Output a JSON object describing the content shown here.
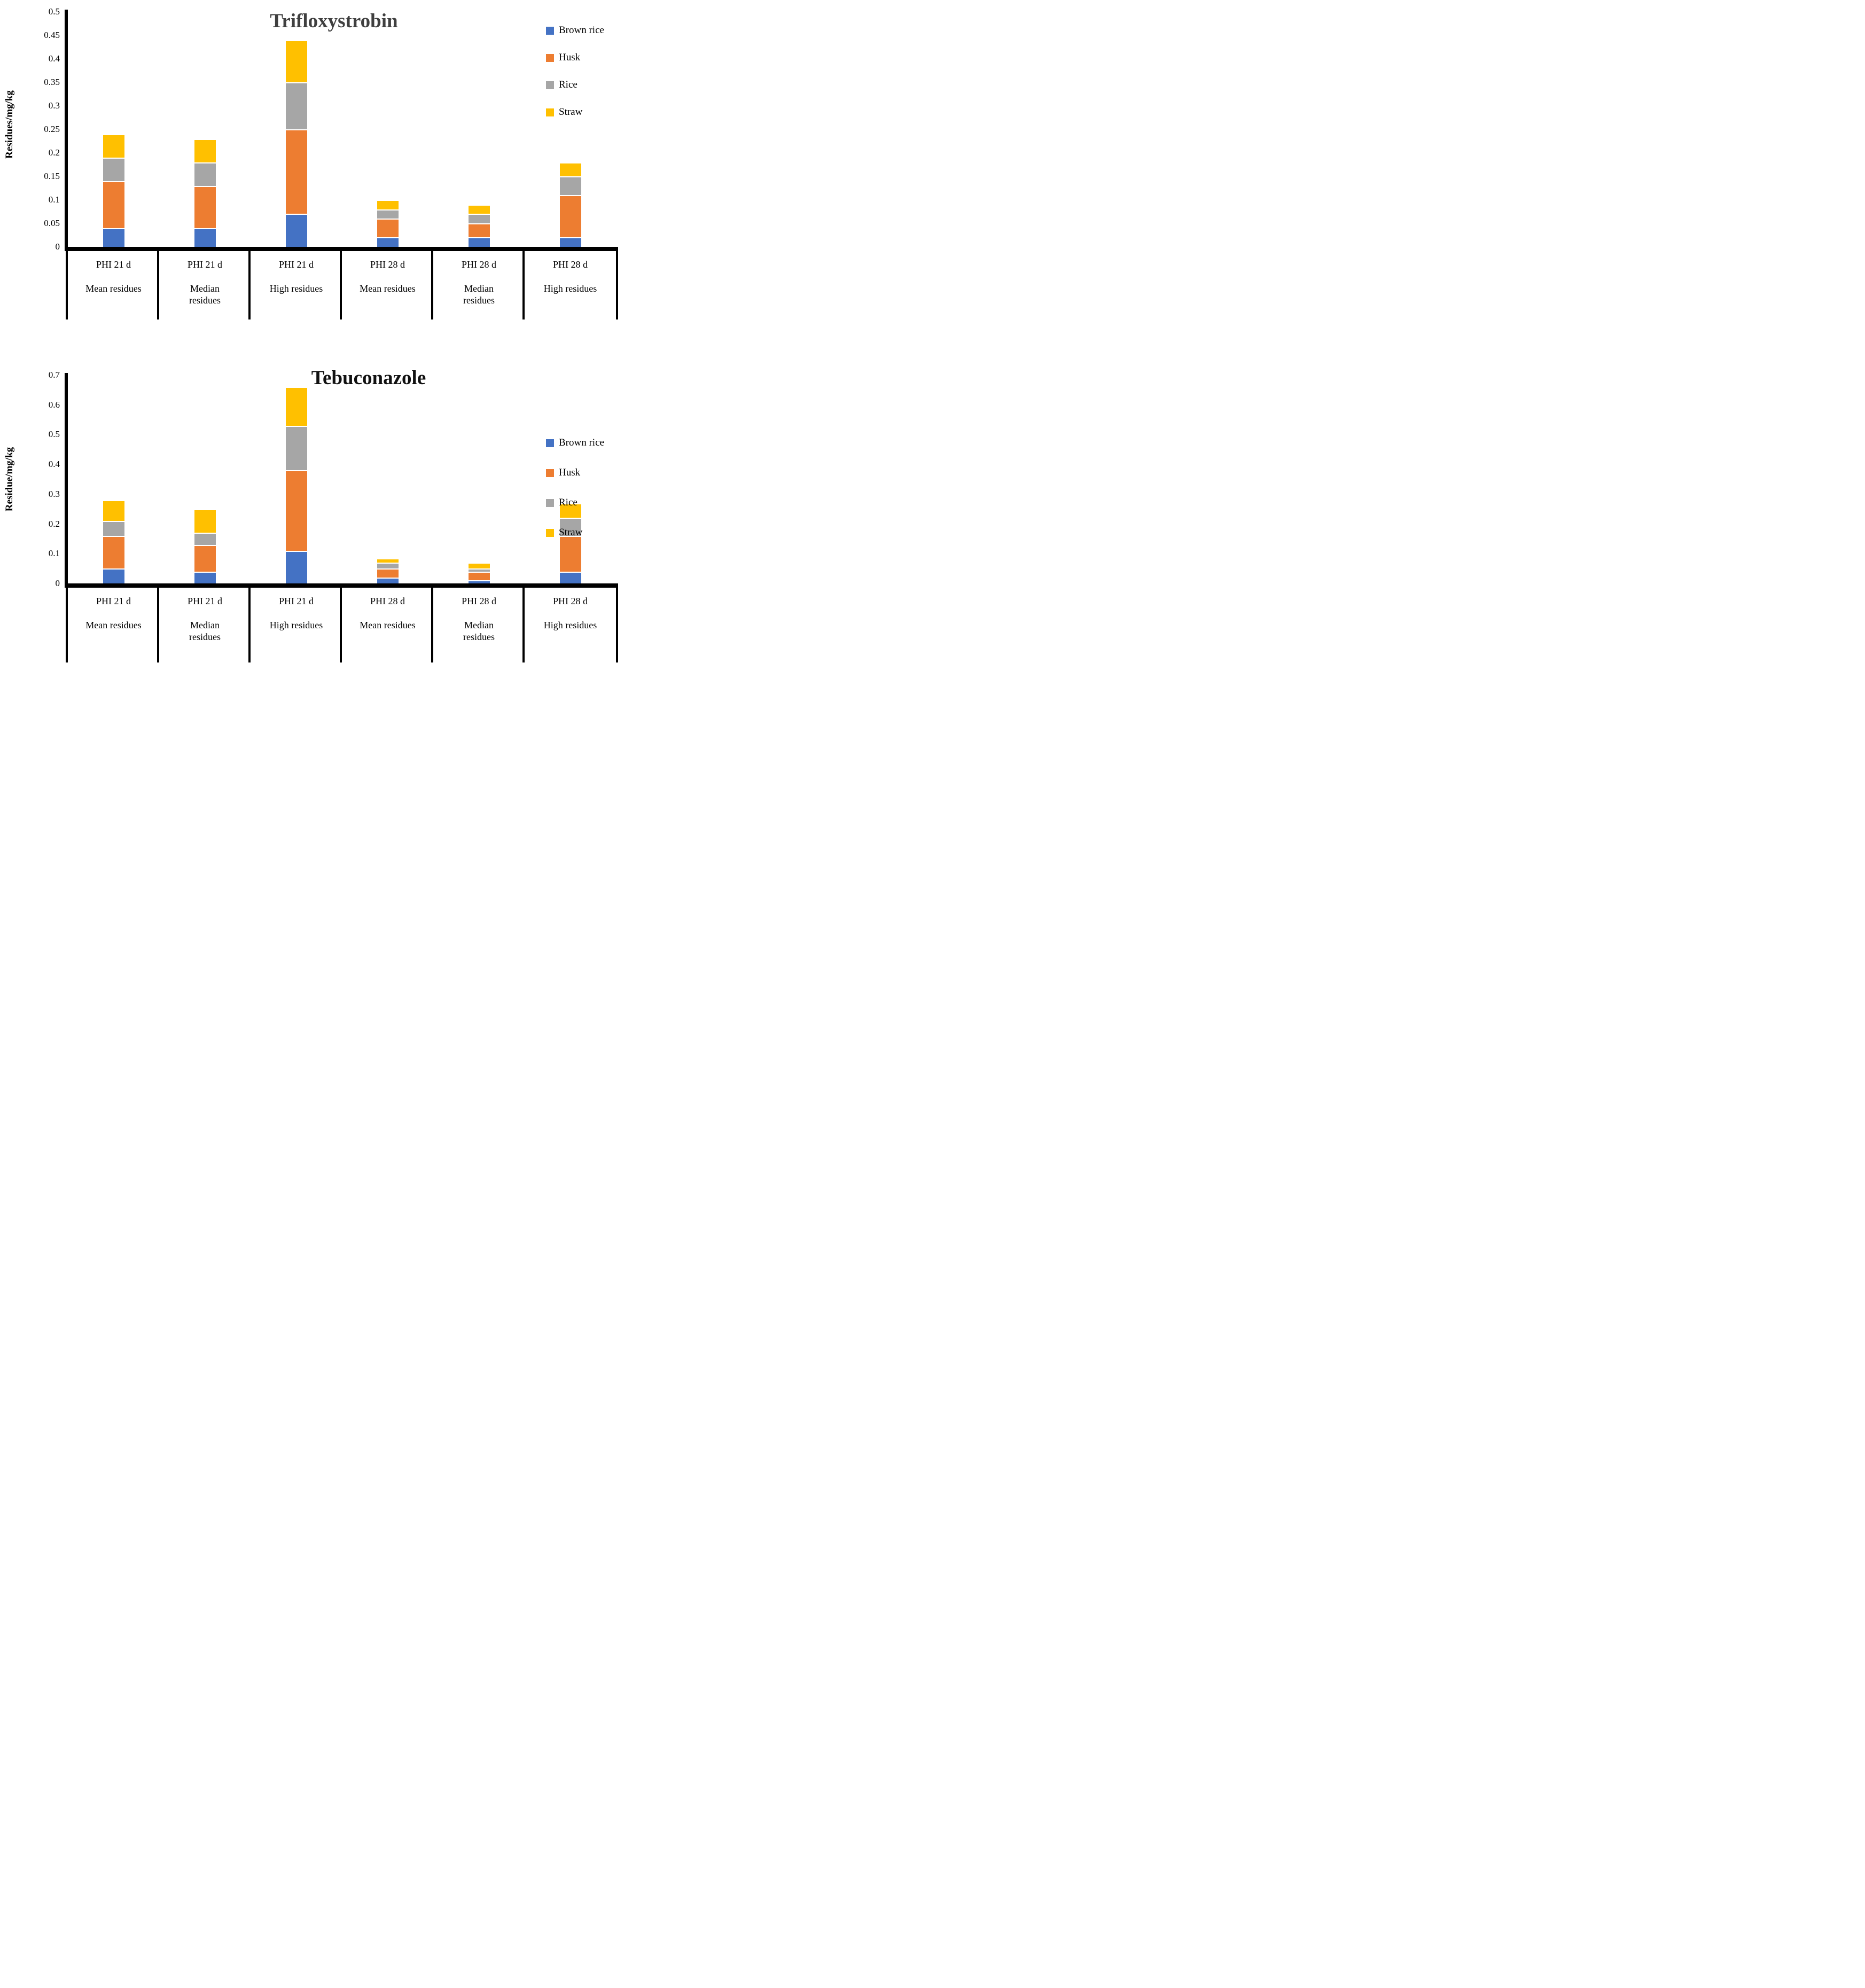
{
  "chart_data": [
    {
      "type": "bar",
      "stacked": true,
      "title": "Trifloxystrobin",
      "ylabel": "Residues/mg/kg",
      "xlabel": "",
      "ylim": [
        0,
        0.5
      ],
      "ytick_step": 0.05,
      "yticks": [
        "0.5",
        "0.45",
        "0.4",
        "0.35",
        "0.3",
        "0.25",
        "0.2",
        "0.15",
        "0.1",
        "0.05",
        "0"
      ],
      "grid": false,
      "legend_position": "upper right",
      "categories": [
        [
          "PHI 21 d",
          "Mean residues"
        ],
        [
          "PHI 21 d",
          "Median",
          "residues"
        ],
        [
          "PHI 21 d",
          "High residues"
        ],
        [
          "PHI 28 d",
          "Mean residues"
        ],
        [
          "PHI 28 d",
          "Median",
          "residues"
        ],
        [
          "PHI 28 d",
          "High residues"
        ]
      ],
      "series": [
        {
          "name": "Brown rice",
          "color": "#4472C4",
          "values": [
            0.04,
            0.04,
            0.07,
            0.02,
            0.02,
            0.02
          ]
        },
        {
          "name": "Husk",
          "color": "#ED7D31",
          "values": [
            0.1,
            0.09,
            0.18,
            0.04,
            0.03,
            0.09
          ]
        },
        {
          "name": "Rice",
          "color": "#A6A6A6",
          "values": [
            0.05,
            0.05,
            0.1,
            0.02,
            0.02,
            0.04
          ]
        },
        {
          "name": "Straw",
          "color": "#FFC000",
          "values": [
            0.05,
            0.05,
            0.09,
            0.02,
            0.02,
            0.03
          ]
        }
      ],
      "stack_totals": [
        0.24,
        0.23,
        0.44,
        0.1,
        0.09,
        0.18
      ]
    },
    {
      "type": "bar",
      "stacked": true,
      "title": "Tebuconazole",
      "ylabel": "Residue/mg/kg",
      "xlabel": "",
      "ylim": [
        0,
        0.7
      ],
      "ytick_step": 0.1,
      "yticks": [
        "0.7",
        "0.6",
        "0.5",
        "0.4",
        "0.3",
        "0.2",
        "0.1",
        "0"
      ],
      "grid": false,
      "legend_position": "upper right",
      "categories": [
        [
          "PHI 21 d",
          "Mean residues"
        ],
        [
          "PHI 21 d",
          "Median",
          "residues"
        ],
        [
          "PHI 21 d",
          "High residues"
        ],
        [
          "PHI 28 d",
          "Mean residues"
        ],
        [
          "PHI 28 d",
          "Median",
          "residues"
        ],
        [
          "PHI 28 d",
          "High residues"
        ]
      ],
      "series": [
        {
          "name": "Brown rice",
          "color": "#4472C4",
          "values": [
            0.05,
            0.04,
            0.11,
            0.02,
            0.01,
            0.04
          ]
        },
        {
          "name": "Husk",
          "color": "#ED7D31",
          "values": [
            0.11,
            0.09,
            0.27,
            0.03,
            0.03,
            0.12
          ]
        },
        {
          "name": "Rice",
          "color": "#A6A6A6",
          "values": [
            0.05,
            0.04,
            0.15,
            0.02,
            0.01,
            0.06
          ]
        },
        {
          "name": "Straw",
          "color": "#FFC000",
          "values": [
            0.07,
            0.08,
            0.13,
            0.015,
            0.02,
            0.05
          ]
        }
      ],
      "stack_totals": [
        0.28,
        0.25,
        0.66,
        0.085,
        0.07,
        0.27
      ]
    }
  ],
  "legend_items": [
    "Brown rice",
    "Husk",
    "Rice",
    "Straw"
  ]
}
